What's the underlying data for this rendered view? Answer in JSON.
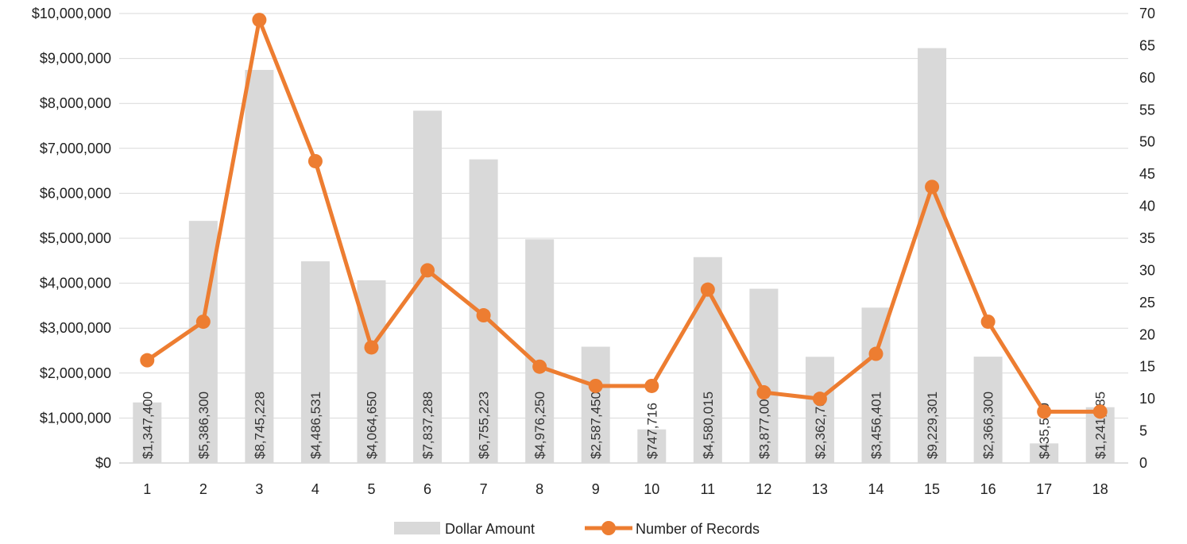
{
  "chart_data": {
    "type": "bar",
    "categories": [
      "1",
      "2",
      "3",
      "4",
      "5",
      "6",
      "7",
      "8",
      "9",
      "10",
      "11",
      "12",
      "13",
      "14",
      "15",
      "16",
      "17",
      "18"
    ],
    "series": [
      {
        "name": "Dollar Amount",
        "type": "bar",
        "axis": "left",
        "values": [
          1347400,
          5386300,
          8745228,
          4486531,
          4064650,
          7837288,
          6755223,
          4976250,
          2587450,
          747716,
          4580015,
          3877001,
          2362700,
          3456401,
          9229301,
          2366300,
          435500,
          1241085
        ],
        "labels": [
          "$1,347,400",
          "$5,386,300",
          "$8,745,228",
          "$4,486,531",
          "$4,064,650",
          "$7,837,288",
          "$6,755,223",
          "$4,976,250",
          "$2,587,450",
          "$747,716",
          "$4,580,015",
          "$3,877,001",
          "$2,362,700",
          "$3,456,401",
          "$9,229,301",
          "$2,366,300",
          "$435,500",
          "$1,241,085"
        ],
        "color": "#d9d9d9"
      },
      {
        "name": "Number of Records",
        "type": "line",
        "axis": "right",
        "values": [
          16,
          22,
          69,
          47,
          18,
          30,
          23,
          15,
          12,
          12,
          27,
          11,
          10,
          17,
          43,
          22,
          8,
          8
        ],
        "color": "#ed7d31"
      }
    ],
    "y_left": {
      "ylim": [
        0,
        10000000
      ],
      "ticks": [
        "$0",
        "$1,000,000",
        "$2,000,000",
        "$3,000,000",
        "$4,000,000",
        "$5,000,000",
        "$6,000,000",
        "$7,000,000",
        "$8,000,000",
        "$9,000,000",
        "$10,000,000"
      ]
    },
    "y_right": {
      "ylim": [
        0,
        70
      ],
      "ticks": [
        "0",
        "5",
        "10",
        "15",
        "20",
        "25",
        "30",
        "35",
        "40",
        "45",
        "50",
        "55",
        "60",
        "65",
        "70"
      ]
    },
    "grid": true,
    "legend": "bottom"
  }
}
